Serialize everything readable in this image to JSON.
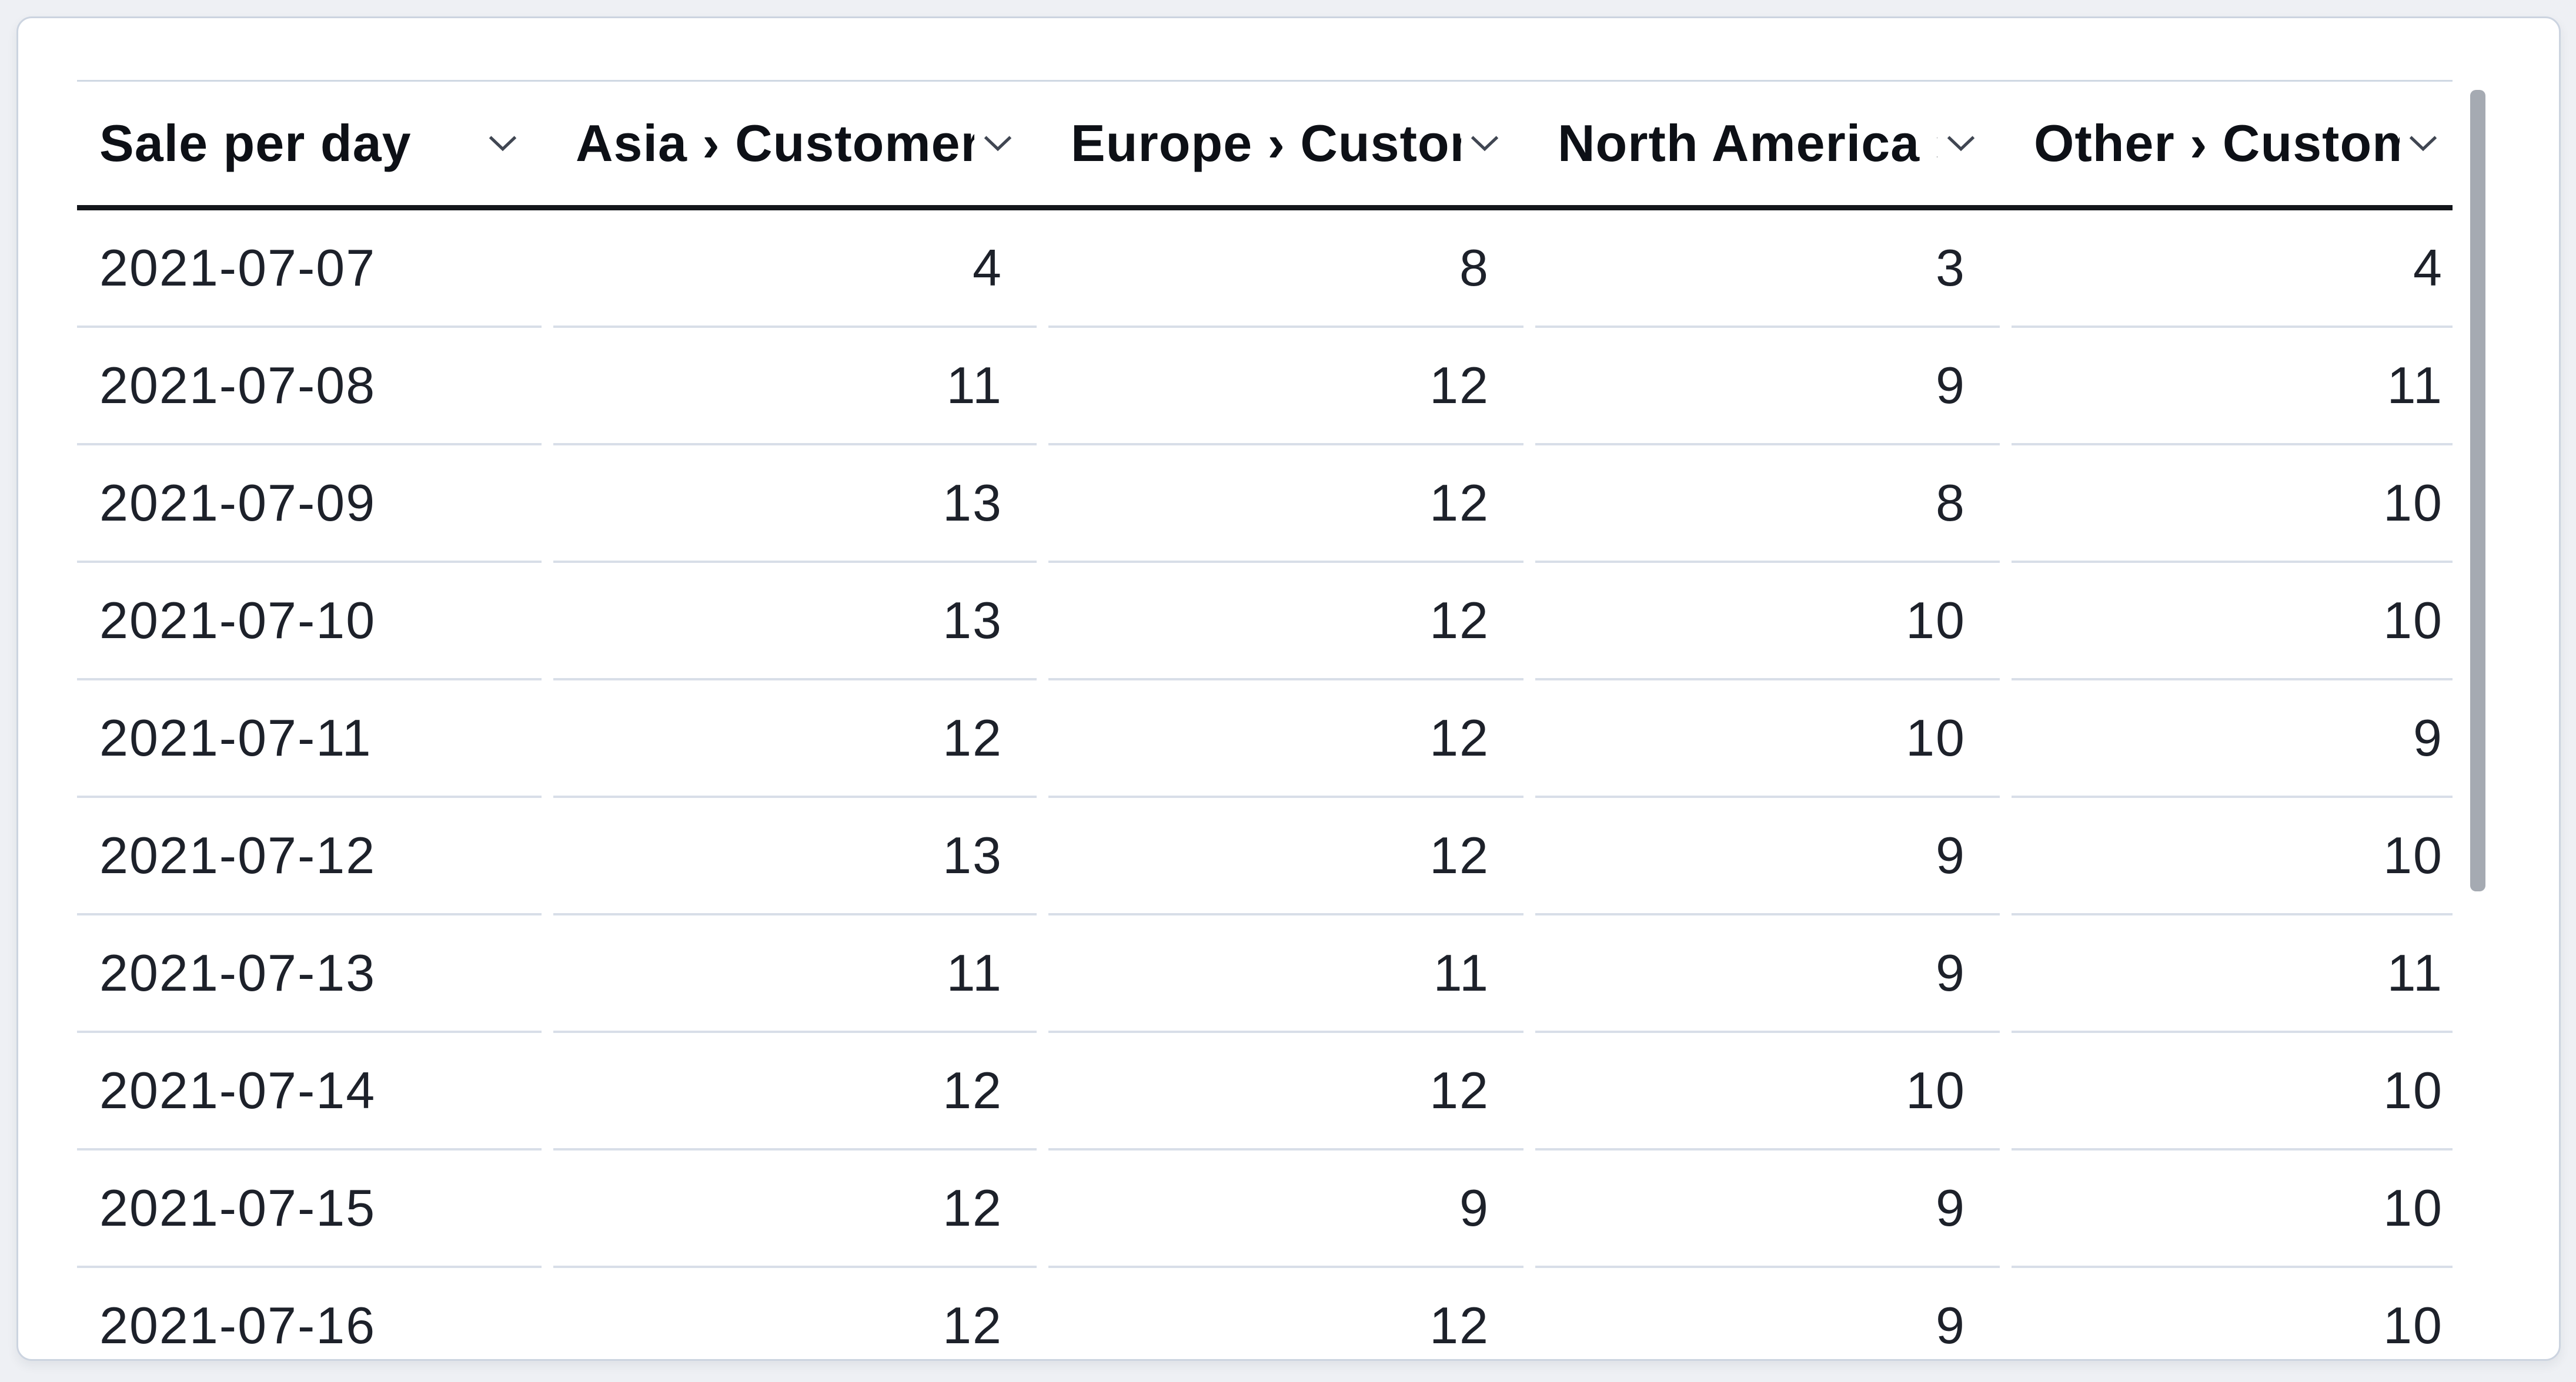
{
  "table": {
    "title": "Sale per day",
    "columns": [
      {
        "label": "Sale per day",
        "align": "left"
      },
      {
        "label": "Asia › Customers",
        "align": "right"
      },
      {
        "label": "Europe › Customers",
        "align": "right"
      },
      {
        "label": "North America › Customers",
        "align": "right"
      },
      {
        "label": "Other › Customers",
        "align": "right"
      }
    ],
    "rows": [
      [
        "2021-07-07",
        "4",
        "8",
        "3",
        "4"
      ],
      [
        "2021-07-08",
        "11",
        "12",
        "9",
        "11"
      ],
      [
        "2021-07-09",
        "13",
        "12",
        "8",
        "10"
      ],
      [
        "2021-07-10",
        "13",
        "12",
        "10",
        "10"
      ],
      [
        "2021-07-11",
        "12",
        "12",
        "10",
        "9"
      ],
      [
        "2021-07-12",
        "13",
        "12",
        "9",
        "10"
      ],
      [
        "2021-07-13",
        "11",
        "11",
        "9",
        "11"
      ],
      [
        "2021-07-14",
        "12",
        "12",
        "10",
        "10"
      ],
      [
        "2021-07-15",
        "12",
        "9",
        "9",
        "10"
      ],
      [
        "2021-07-16",
        "12",
        "12",
        "9",
        "10"
      ]
    ]
  },
  "icons": {
    "sort_chevron": "chevron-down"
  },
  "colors": {
    "header_underline": "#13161b",
    "row_divider": "#d8dee8",
    "card_border": "#ccd4e0",
    "scrollbar_thumb": "#a5aab2",
    "text": "#1d212a"
  },
  "chart_data": {
    "type": "table",
    "title": "Sale per day",
    "categories": [
      "2021-07-07",
      "2021-07-08",
      "2021-07-09",
      "2021-07-10",
      "2021-07-11",
      "2021-07-12",
      "2021-07-13",
      "2021-07-14",
      "2021-07-15",
      "2021-07-16"
    ],
    "series": [
      {
        "name": "Asia › Customers",
        "values": [
          4,
          11,
          13,
          13,
          12,
          13,
          11,
          12,
          12,
          12
        ]
      },
      {
        "name": "Europe › Customers",
        "values": [
          8,
          12,
          12,
          12,
          12,
          12,
          11,
          12,
          9,
          12
        ]
      },
      {
        "name": "North America › Customers",
        "values": [
          3,
          9,
          8,
          10,
          10,
          9,
          9,
          10,
          9,
          9
        ]
      },
      {
        "name": "Other › Customers",
        "values": [
          4,
          11,
          10,
          10,
          9,
          10,
          11,
          10,
          10,
          10
        ]
      }
    ]
  }
}
